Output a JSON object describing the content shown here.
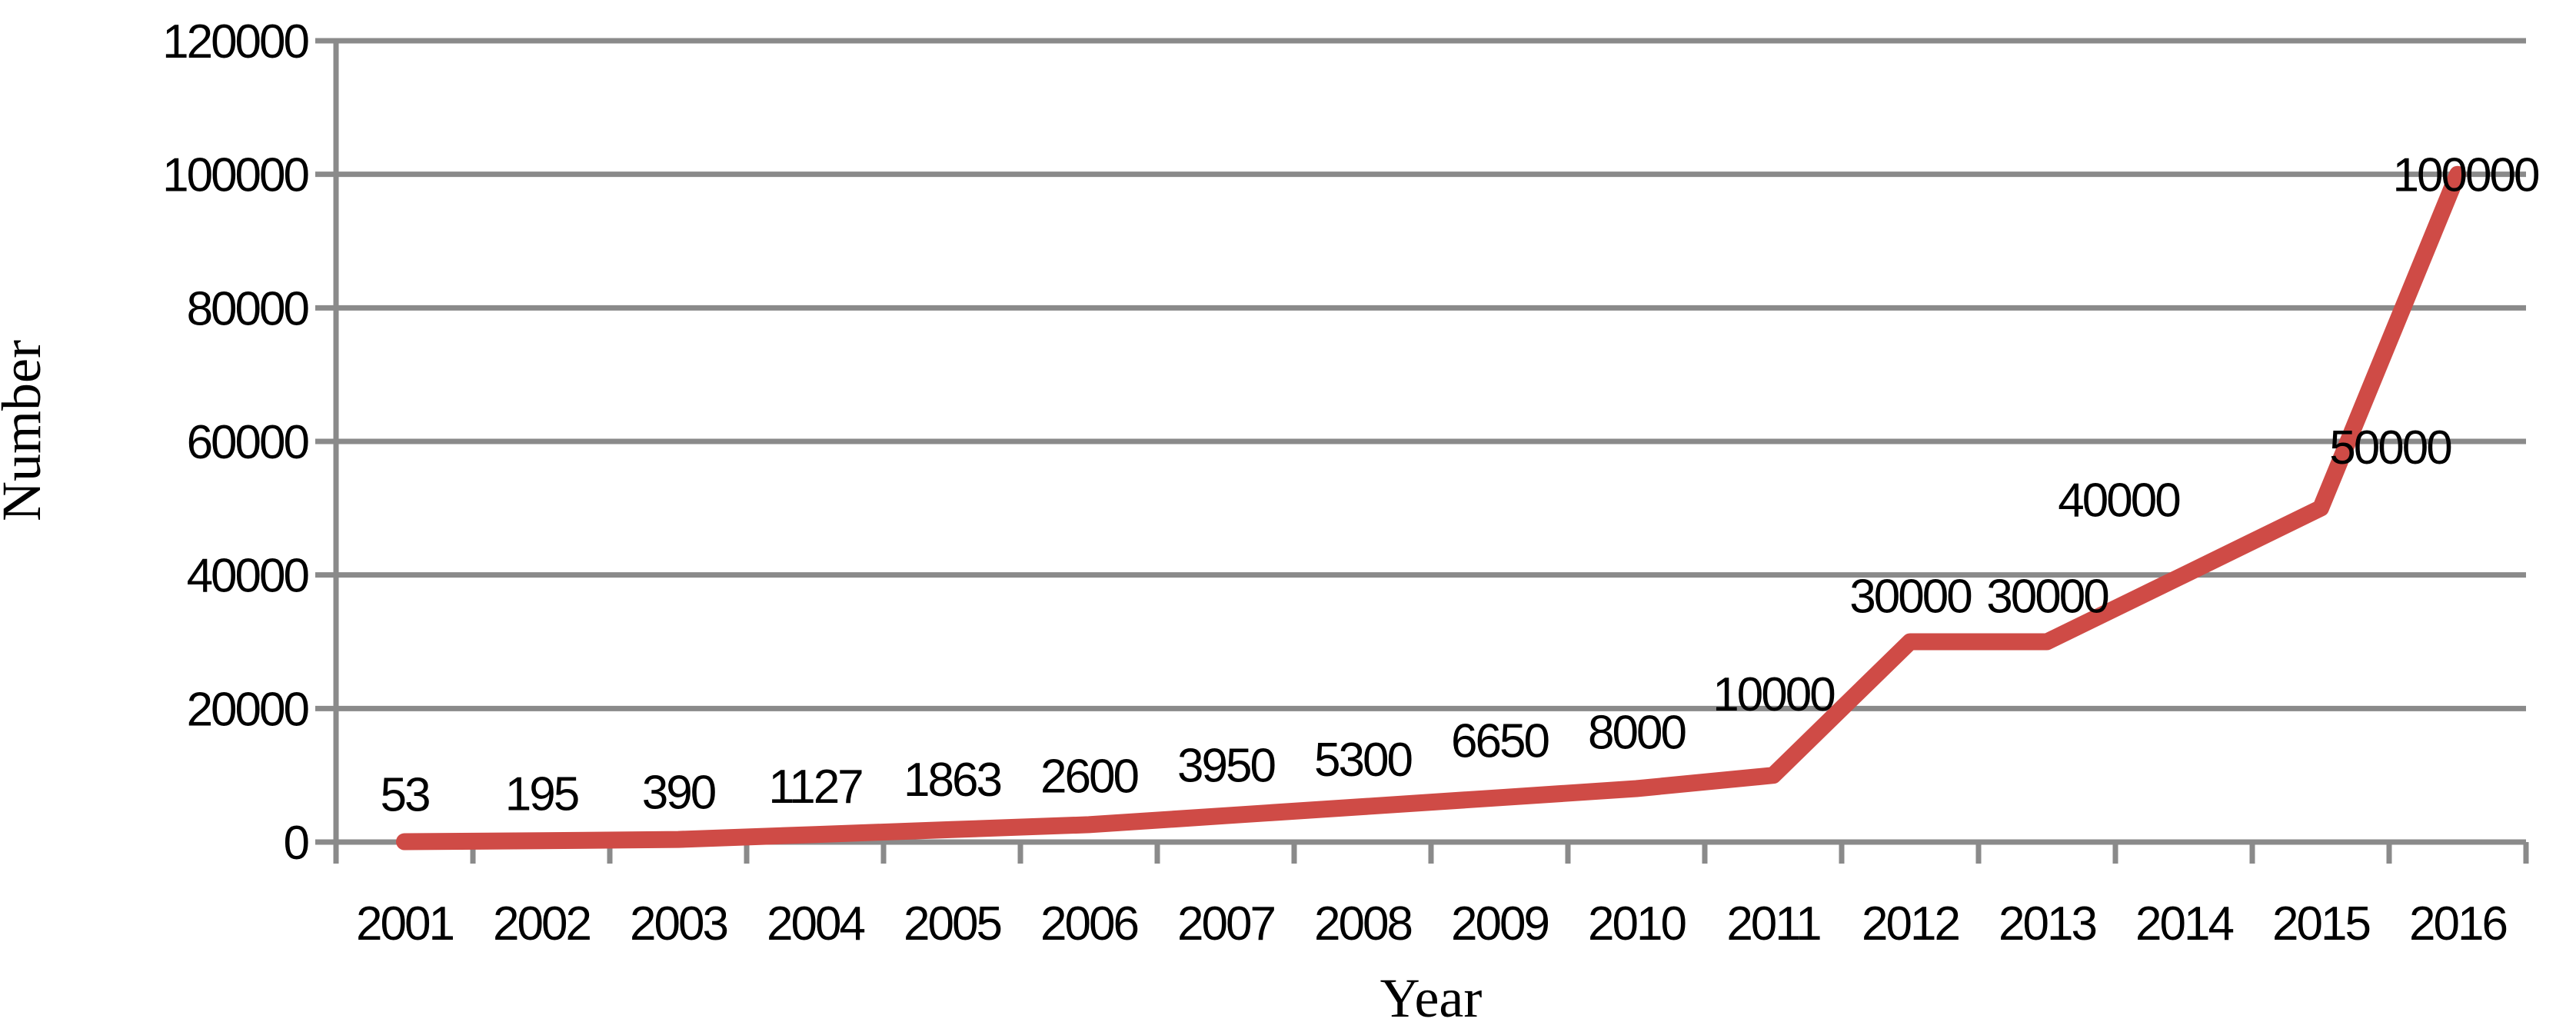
{
  "chart_data": {
    "type": "line",
    "title": "",
    "xlabel": "Year",
    "ylabel": "Number",
    "categories": [
      "2001",
      "2002",
      "2003",
      "2004",
      "2005",
      "2006",
      "2007",
      "2008",
      "2009",
      "2010",
      "2011",
      "2012",
      "2013",
      "2014",
      "2015",
      "2016"
    ],
    "series": [
      {
        "name": "Number",
        "values": [
          53,
          195,
          390,
          1127,
          1863,
          2600,
          3950,
          5300,
          6650,
          8000,
          10000,
          30000,
          30000,
          40000,
          50000,
          100000
        ],
        "color": "#CF4B46"
      }
    ],
    "data_labels": [
      "53",
      "195",
      "390",
      "1127",
      "1863",
      "2600",
      "3950",
      "5300",
      "6650",
      "8000",
      "10000",
      "30000",
      "30000",
      "40000",
      "50000",
      "100000"
    ],
    "ylim": [
      0,
      120000
    ],
    "ytick_step": 20000,
    "ytick_labels": [
      "0",
      "20000",
      "40000",
      "60000",
      "80000",
      "100000",
      "120000"
    ],
    "grid": true,
    "legend": false,
    "colors": {
      "series_line": "#CF4B46",
      "gridline": "#8A8A8A",
      "axis_line": "#8A8A8A",
      "text": "#000000",
      "background": "#FFFFFF"
    }
  }
}
